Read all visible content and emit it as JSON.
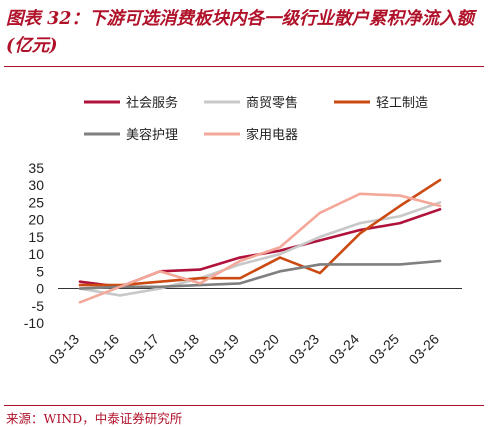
{
  "title": "图表 32：下游可选消费板块内各一级行业散户累积净流入额(亿元)",
  "source": "来源：WIND，中泰证券研究所",
  "chart_data": {
    "type": "line",
    "categories": [
      "03-13",
      "03-16",
      "03-17",
      "03-18",
      "03-19",
      "03-20",
      "03-23",
      "03-24",
      "03-25",
      "03-26"
    ],
    "ylim": [
      -10,
      35
    ],
    "yticks": [
      -10,
      -5,
      0,
      5,
      10,
      15,
      20,
      25,
      30,
      35
    ],
    "grid": false,
    "legend_position": "top",
    "series": [
      {
        "name": "社会服务",
        "color": "#b0123c",
        "values": [
          2,
          0.5,
          5,
          5.5,
          9,
          11,
          14,
          17,
          19,
          23
        ]
      },
      {
        "name": "商贸零售",
        "color": "#c8c8c8",
        "values": [
          0,
          -2,
          0,
          3,
          7,
          10,
          15,
          19,
          21,
          25
        ]
      },
      {
        "name": "轻工制造",
        "color": "#cc4a12",
        "values": [
          1,
          1,
          2,
          3,
          3,
          9,
          4.5,
          16,
          24,
          31.5
        ]
      },
      {
        "name": "美容护理",
        "color": "#7f7f7f",
        "values": [
          0,
          0.5,
          0.5,
          1,
          1.5,
          5,
          7,
          7,
          7,
          8
        ]
      },
      {
        "name": "家用电器",
        "color": "#f4a89a",
        "values": [
          -4,
          0.5,
          5,
          1.5,
          8,
          12,
          22,
          27.5,
          27,
          24
        ]
      }
    ]
  }
}
